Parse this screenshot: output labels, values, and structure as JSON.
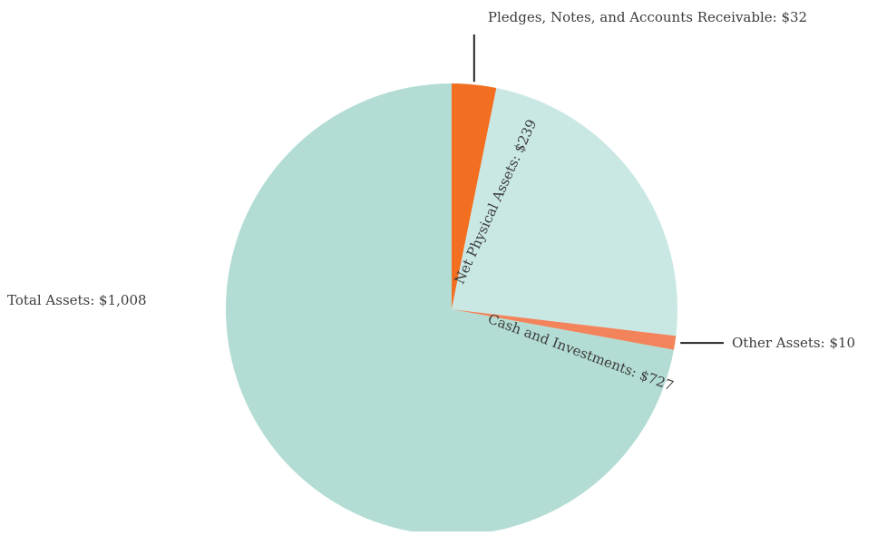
{
  "chart_data": {
    "type": "pie",
    "title": "",
    "total_label": "Total Assets: $1,008",
    "start": "12 o'clock",
    "direction": "clockwise",
    "slices": [
      {
        "label": "Pledges, Notes, and Accounts Receivable: $32",
        "value": 32,
        "color": "#f26f22",
        "label_style": "callout-above"
      },
      {
        "label": "Net Physical Assets: $239",
        "value": 239,
        "color": "#c9e8e4",
        "label_style": "inside-rotated"
      },
      {
        "label": "Other Assets: $10",
        "value": 10,
        "color": "#f2835a",
        "label_style": "callout-right"
      },
      {
        "label": "Cash and Investments: $727",
        "value": 727,
        "color": "#b3ddd4",
        "label_style": "inside-rotated"
      }
    ]
  }
}
